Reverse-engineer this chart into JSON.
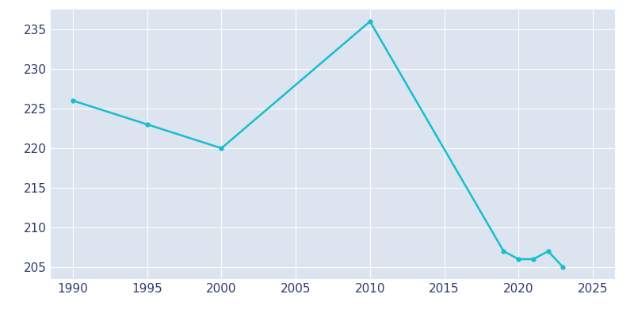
{
  "years": [
    1990,
    1995,
    2000,
    2010,
    2019,
    2020,
    2021,
    2022,
    2023
  ],
  "population": [
    226,
    223,
    220,
    236,
    207,
    206,
    206,
    207,
    205
  ],
  "line_color": "#17BECF",
  "background_color": "#FFFFFF",
  "plot_bg_color": "#DCE4EF",
  "tick_label_color": "#2D3A6E",
  "grid_color": "#FFFFFF",
  "xlim": [
    1988.5,
    2026.5
  ],
  "ylim": [
    203.5,
    237.5
  ],
  "xticks": [
    1990,
    1995,
    2000,
    2005,
    2010,
    2015,
    2020,
    2025
  ],
  "yticks": [
    205,
    210,
    215,
    220,
    225,
    230,
    235
  ],
  "line_width": 1.8,
  "marker": "o",
  "marker_size": 3.5,
  "figsize": [
    8.0,
    4.0
  ],
  "dpi": 100
}
